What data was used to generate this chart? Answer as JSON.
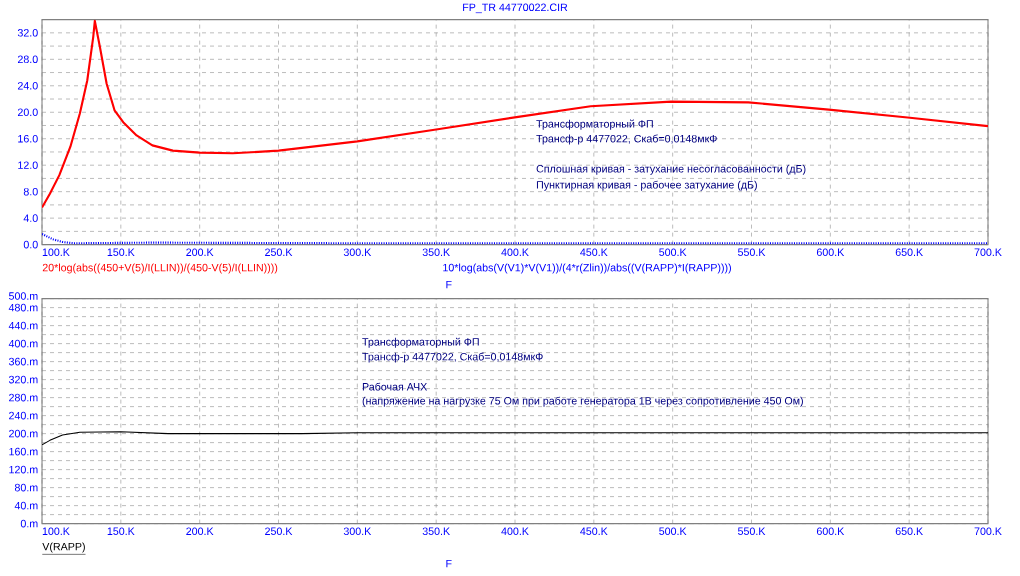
{
  "chart_data": [
    {
      "type": "line",
      "title": "FP_TR 44770022.CIR",
      "xlabel": "F",
      "legend": "bottom",
      "grid": true,
      "xlim": [
        100,
        700
      ],
      "xticks": [
        {
          "value": 100,
          "label": "100.K"
        },
        {
          "value": 150,
          "label": "150.K"
        },
        {
          "value": 200,
          "label": "200.K"
        },
        {
          "value": 250,
          "label": "250.K"
        },
        {
          "value": 300,
          "label": "300.K"
        },
        {
          "value": 350,
          "label": "350.K"
        },
        {
          "value": 400,
          "label": "400.K"
        },
        {
          "value": 450,
          "label": "450.K"
        },
        {
          "value": 500,
          "label": "500.K"
        },
        {
          "value": 550,
          "label": "550.K"
        },
        {
          "value": 600,
          "label": "600.K"
        },
        {
          "value": 650,
          "label": "650.K"
        },
        {
          "value": 700,
          "label": "700.K"
        }
      ],
      "ylim": [
        0,
        34
      ],
      "yticks": [
        {
          "value": 0,
          "label": "0.0"
        },
        {
          "value": 4,
          "label": "4.0"
        },
        {
          "value": 8,
          "label": "8.0"
        },
        {
          "value": 12,
          "label": "12.0"
        },
        {
          "value": 16,
          "label": "16.0"
        },
        {
          "value": 20,
          "label": "20.0"
        },
        {
          "value": 24,
          "label": "24.0"
        },
        {
          "value": 28,
          "label": "28.0"
        },
        {
          "value": 32,
          "label": "32.0"
        }
      ],
      "series": [
        {
          "name": "20*log(abs((450+V(5)/I(LLIN))/(450-V(5)/I(LLIN))))",
          "color": "#ff0000",
          "line_style": "solid",
          "x": [
            100,
            105,
            111,
            118,
            124,
            128.7,
            132.5,
            133.5,
            136.7,
            141,
            146,
            151.5,
            160,
            170,
            183,
            200,
            221,
            250,
            300,
            350,
            402,
            448,
            499,
            548,
            599,
            649,
            700
          ],
          "values": [
            5.6,
            7.7,
            10.5,
            14.8,
            19.8,
            24.8,
            31.4,
            33.8,
            29.9,
            24.3,
            20.3,
            18.5,
            16.5,
            15.0,
            14.2,
            13.9,
            13.8,
            14.2,
            15.6,
            17.4,
            19.3,
            20.9,
            21.6,
            21.5,
            20.4,
            19.2,
            17.9
          ]
        },
        {
          "name": "10*log(abs(V(V1)*V(V1))/(4*r(Zlin))/abs((V(RAPP)*I(RAPP))))",
          "color": "#0000ff",
          "line_style": "dotted",
          "x": [
            100,
            107,
            113,
            120,
            170,
            300,
            400,
            700
          ],
          "values": [
            1.6,
            0.8,
            0.4,
            0.2,
            0.3,
            0.2,
            0.2,
            0.2
          ]
        }
      ],
      "annotations": [
        "Трансформаторный ФП",
        "Трансф-р 4477022, Скаб=0,0148мкФ",
        "Сплошная кривая - затухание несогласованности (дБ)",
        "Пунктирная кривая - рабочее затухание (дБ)"
      ]
    },
    {
      "type": "line",
      "xlabel": "F",
      "legend": "bottom",
      "grid": true,
      "xlim": [
        100,
        700
      ],
      "xticks": [
        {
          "value": 100,
          "label": "100.K"
        },
        {
          "value": 150,
          "label": "150.K"
        },
        {
          "value": 200,
          "label": "200.K"
        },
        {
          "value": 250,
          "label": "250.K"
        },
        {
          "value": 300,
          "label": "300.K"
        },
        {
          "value": 350,
          "label": "350.K"
        },
        {
          "value": 400,
          "label": "400.K"
        },
        {
          "value": 450,
          "label": "450.K"
        },
        {
          "value": 500,
          "label": "500.K"
        },
        {
          "value": 550,
          "label": "550.K"
        },
        {
          "value": 600,
          "label": "600.K"
        },
        {
          "value": 650,
          "label": "650.K"
        },
        {
          "value": 700,
          "label": "700.K"
        }
      ],
      "ylim": [
        0,
        500
      ],
      "yticks": [
        {
          "value": 0,
          "label": "0.m"
        },
        {
          "value": 40,
          "label": "40.m"
        },
        {
          "value": 80,
          "label": "80.m"
        },
        {
          "value": 120,
          "label": "120.m"
        },
        {
          "value": 160,
          "label": "160.m"
        },
        {
          "value": 200,
          "label": "200.m"
        },
        {
          "value": 240,
          "label": "240.m"
        },
        {
          "value": 280,
          "label": "280.m"
        },
        {
          "value": 320,
          "label": "320.m"
        },
        {
          "value": 360,
          "label": "360.m"
        },
        {
          "value": 400,
          "label": "400.m"
        },
        {
          "value": 440,
          "label": "440.m"
        },
        {
          "value": 480,
          "label": "480.m"
        },
        {
          "value": 500,
          "label": "500.m"
        }
      ],
      "series": [
        {
          "name": "V(RAPP)",
          "color": "#000000",
          "line_style": "solid",
          "x": [
            100,
            105,
            113,
            124,
            150,
            180,
            200,
            265,
            300,
            700
          ],
          "values": [
            175,
            185,
            197,
            203,
            204,
            200,
            200,
            200,
            202,
            202
          ]
        }
      ],
      "annotations": [
        "Трансформаторный ФП",
        "Трансф-р 4477022, Скаб=0,0148мкФ",
        "Рабочая АЧХ",
        "(напряжение на нагрузке 75 Ом при работе генератора 1В через сопротивление 450 Ом)"
      ]
    }
  ]
}
